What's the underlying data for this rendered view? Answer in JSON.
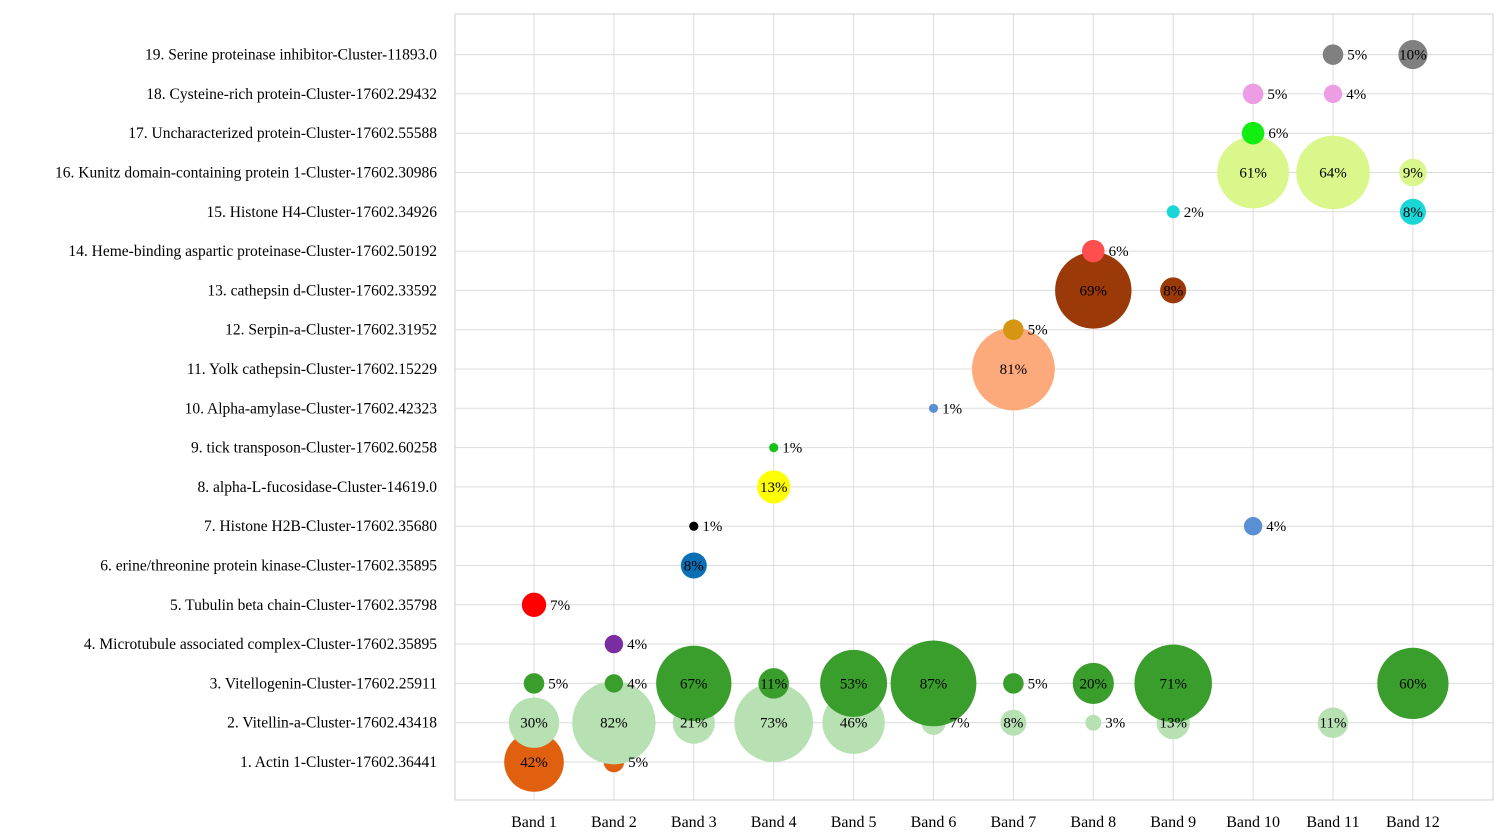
{
  "chart_data": {
    "type": "scatter",
    "title": "",
    "xlabel": "",
    "ylabel": "",
    "grid": true,
    "categories": [
      "Band 1",
      "Band 2",
      "Band 3",
      "Band 4",
      "Band 5",
      "Band 6",
      "Band 7",
      "Band 8",
      "Band 9",
      "Band 10",
      "Band 11",
      "Band 12"
    ],
    "rows": [
      "1. Actin 1-Cluster-17602.36441",
      "2. Vitellin-a-Cluster-17602.43418",
      "3. Vitellogenin-Cluster-17602.25911",
      "4. Microtubule associated complex-Cluster-17602.35895",
      "5. Tubulin beta chain-Cluster-17602.35798",
      "6. erine/threonine protein kinase-Cluster-17602.35895",
      "7. Histone H2B-Cluster-17602.35680",
      "8. alpha-L-fucosidase-Cluster-14619.0",
      "9. tick transposon-Cluster-17602.60258",
      "10. Alpha-amylase-Cluster-17602.42323",
      "11. Yolk cathepsin-Cluster-17602.15229",
      "12. Serpin-a-Cluster-17602.31952",
      "13. cathepsin d-Cluster-17602.33592",
      "14. Heme-binding aspartic proteinase-Cluster-17602.50192",
      "15. Histone H4-Cluster-17602.34926",
      "16. Kunitz domain-containing protein 1-Cluster-17602.30986",
      "17. Uncharacterized protein-Cluster-17602.55588",
      "18. Cysteine-rich protein-Cluster-17602.29432",
      "19. Serine proteinase inhibitor-Cluster-11893.0"
    ],
    "series": [
      {
        "row": 1,
        "color": "#e06010",
        "points": [
          {
            "band": 1,
            "value": 42,
            "label": "42%"
          },
          {
            "band": 2,
            "value": 5,
            "label": "5%"
          }
        ]
      },
      {
        "row": 2,
        "color": "#b7e0b3",
        "points": [
          {
            "band": 1,
            "value": 30,
            "label": "30%"
          },
          {
            "band": 2,
            "value": 82,
            "label": "82%"
          },
          {
            "band": 3,
            "value": 21,
            "label": "21%"
          },
          {
            "band": 4,
            "value": 73,
            "label": "73%"
          },
          {
            "band": 5,
            "value": 46,
            "label": "46%"
          },
          {
            "band": 6,
            "value": 7,
            "label": "7%"
          },
          {
            "band": 7,
            "value": 8,
            "label": "8%"
          },
          {
            "band": 8,
            "value": 3,
            "label": "3%"
          },
          {
            "band": 9,
            "value": 13,
            "label": "13%"
          },
          {
            "band": 11,
            "value": 11,
            "label": "11%"
          }
        ]
      },
      {
        "row": 3,
        "color": "#3a9e2c",
        "points": [
          {
            "band": 1,
            "value": 5,
            "label": "5%"
          },
          {
            "band": 2,
            "value": 4,
            "label": "4%"
          },
          {
            "band": 3,
            "value": 67,
            "label": "67%"
          },
          {
            "band": 4,
            "value": 11,
            "label": "11%"
          },
          {
            "band": 5,
            "value": 53,
            "label": "53%"
          },
          {
            "band": 6,
            "value": 87,
            "label": "87%"
          },
          {
            "band": 7,
            "value": 5,
            "label": "5%"
          },
          {
            "band": 8,
            "value": 20,
            "label": "20%"
          },
          {
            "band": 9,
            "value": 71,
            "label": "71%"
          },
          {
            "band": 12,
            "value": 60,
            "label": "60%"
          }
        ]
      },
      {
        "row": 4,
        "color": "#7a2da0",
        "points": [
          {
            "band": 2,
            "value": 4,
            "label": "4%"
          }
        ]
      },
      {
        "row": 5,
        "color": "#ff0000",
        "points": [
          {
            "band": 1,
            "value": 7,
            "label": "7%"
          }
        ]
      },
      {
        "row": 6,
        "color": "#0a6fb5",
        "points": [
          {
            "band": 3,
            "value": 8,
            "label": "8%"
          }
        ]
      },
      {
        "row": 7,
        "color": "#000000",
        "points": [
          {
            "band": 3,
            "value": 1,
            "label": "1%"
          }
        ]
      },
      {
        "row": 7,
        "color": "#5b8fd4",
        "points": [
          {
            "band": 10,
            "value": 4,
            "label": "4%"
          }
        ]
      },
      {
        "row": 8,
        "color": "#ffff00",
        "points": [
          {
            "band": 4,
            "value": 13,
            "label": "13%"
          }
        ]
      },
      {
        "row": 9,
        "color": "#17c017",
        "points": [
          {
            "band": 4,
            "value": 1,
            "label": "1%"
          }
        ]
      },
      {
        "row": 10,
        "color": "#5b8fd4",
        "points": [
          {
            "band": 6,
            "value": 1,
            "label": "1%"
          }
        ]
      },
      {
        "row": 11,
        "color": "#fcaa7c",
        "points": [
          {
            "band": 7,
            "value": 81,
            "label": "81%"
          }
        ]
      },
      {
        "row": 12,
        "color": "#d49613",
        "points": [
          {
            "band": 7,
            "value": 5,
            "label": "5%"
          }
        ]
      },
      {
        "row": 13,
        "color": "#9b3908",
        "points": [
          {
            "band": 8,
            "value": 69,
            "label": "69%"
          },
          {
            "band": 9,
            "value": 8,
            "label": "8%"
          }
        ]
      },
      {
        "row": 14,
        "color": "#ff4e4e",
        "points": [
          {
            "band": 8,
            "value": 6,
            "label": "6%"
          }
        ]
      },
      {
        "row": 15,
        "color": "#1ad6d6",
        "points": [
          {
            "band": 9,
            "value": 2,
            "label": "2%"
          },
          {
            "band": 12,
            "value": 8,
            "label": "8%"
          }
        ]
      },
      {
        "row": 16,
        "color": "#d9f78a",
        "points": [
          {
            "band": 10,
            "value": 61,
            "label": "61%"
          },
          {
            "band": 11,
            "value": 64,
            "label": "64%"
          },
          {
            "band": 12,
            "value": 9,
            "label": "9%"
          }
        ]
      },
      {
        "row": 17,
        "color": "#12ee12",
        "points": [
          {
            "band": 10,
            "value": 6,
            "label": "6%"
          }
        ]
      },
      {
        "row": 18,
        "color": "#ed9de3",
        "points": [
          {
            "band": 10,
            "value": 5,
            "label": "5%"
          },
          {
            "band": 11,
            "value": 4,
            "label": "4%"
          }
        ]
      },
      {
        "row": 19,
        "color": "#808080",
        "points": [
          {
            "band": 11,
            "value": 5,
            "label": "5%"
          },
          {
            "band": 12,
            "value": 10,
            "label": "10%"
          }
        ]
      }
    ]
  }
}
